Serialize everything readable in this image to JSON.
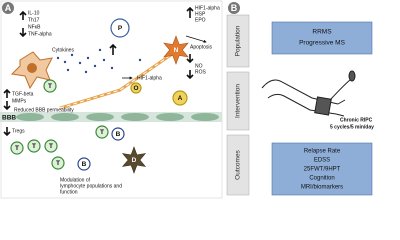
{
  "panel_a": {
    "label": "A",
    "cytokine_markers": [
      "IL-10",
      "Th17",
      "NFκB",
      "TNF-alpha"
    ],
    "cytokines": "Cytokines",
    "barrier_markers": [
      "TGF-beta",
      "MMPs"
    ],
    "bbb_permeability": "Reduced BBB permeability",
    "bbb": "BBB",
    "tregs": "Tregs",
    "modulation": [
      "Modulation of",
      "lymphocyte populations and",
      "function"
    ],
    "neuron_markers": [
      "HIF1-alpha",
      "HSP",
      "EPO"
    ],
    "apoptosis": "Apoptosis",
    "stress_markers": [
      "NO",
      "ROS"
    ],
    "oligo_marker": "HIF1-alpha",
    "cells": [
      "P",
      "N",
      "A",
      "O",
      "T",
      "T",
      "T",
      "T",
      "T",
      "B",
      "T",
      "B",
      "D"
    ]
  },
  "panel_b": {
    "label": "B",
    "population": {
      "title": "Population",
      "items": [
        "RRMS",
        "Progressive MS"
      ]
    },
    "intervention": {
      "title": "Intervention",
      "items": [
        "Chronic RIPC",
        "5 cycles/5 min/day"
      ]
    },
    "outcomes": {
      "title": "Outcomes",
      "items": [
        "Relapse Rate",
        "EDSS",
        "25FWT/9HPT",
        "Cognition",
        "MRI/biomarkers"
      ]
    }
  }
}
